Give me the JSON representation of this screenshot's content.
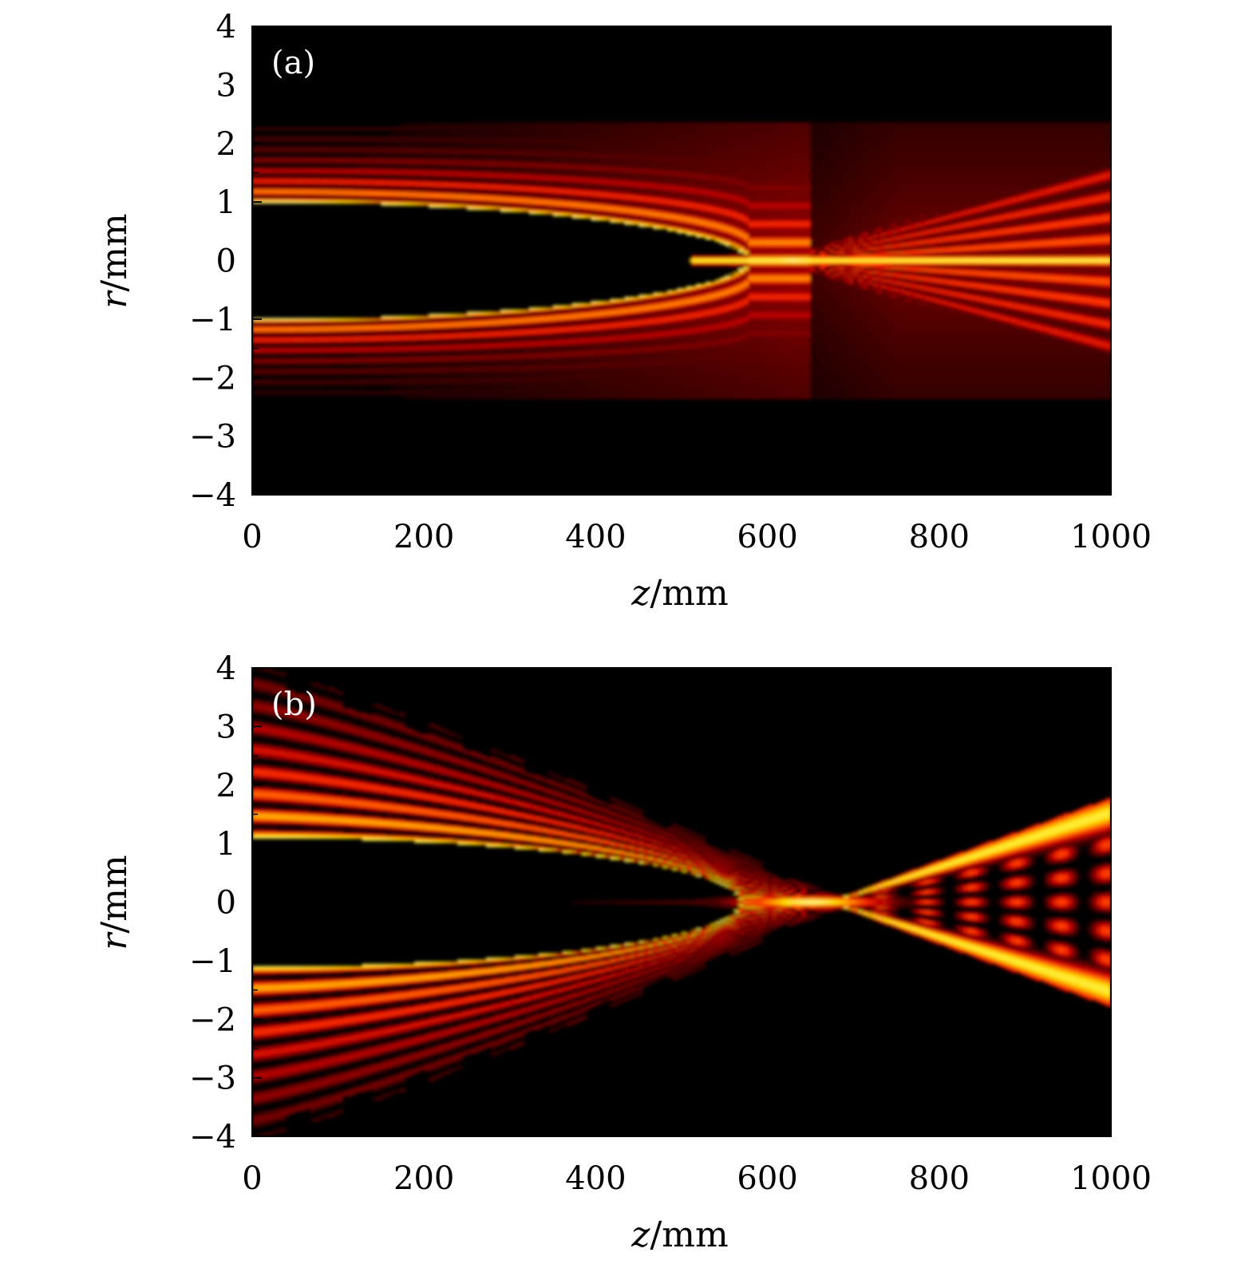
{
  "chart_data": [
    {
      "type": "heatmap",
      "panel_label": "(a)",
      "xlabel_var": "z",
      "xlabel_unit": "/mm",
      "ylabel_var": "r",
      "ylabel_unit": "/mm",
      "xlim": [
        0,
        1000
      ],
      "ylim": [
        -4,
        4
      ],
      "x_ticks": [
        0,
        200,
        400,
        600,
        800,
        1000
      ],
      "x_tick_labels": [
        "0",
        "200",
        "400",
        "600",
        "800",
        "1000"
      ],
      "y_ticks": [
        4,
        3,
        2,
        1,
        0,
        -1,
        -2,
        -3,
        -4
      ],
      "y_tick_labels": [
        "4",
        "3",
        "2",
        "1",
        "0",
        "−1",
        "−2",
        "−3",
        "−4"
      ],
      "colormap": [
        "#000000",
        "#5a0000",
        "#c00000",
        "#ff3000",
        "#ff8c00",
        "#ffe000",
        "#ffff9a"
      ],
      "features": {
        "beam_outer_edge_r": 2.35,
        "initial_inner_ring_r": 1.0,
        "focus_z": 630,
        "ring_closure_z": 540,
        "fringe_count": 12,
        "output_spread_r_at_z1000": 1.6
      }
    },
    {
      "type": "heatmap",
      "panel_label": "(b)",
      "xlabel_var": "z",
      "xlabel_unit": "/mm",
      "ylabel_var": "r",
      "ylabel_unit": "/mm",
      "xlim": [
        0,
        1000
      ],
      "ylim": [
        -4,
        4
      ],
      "x_ticks": [
        0,
        200,
        400,
        600,
        800,
        1000
      ],
      "x_tick_labels": [
        "0",
        "200",
        "400",
        "600",
        "800",
        "1000"
      ],
      "y_ticks": [
        4,
        3,
        2,
        1,
        0,
        -1,
        -2,
        -3,
        -4
      ],
      "y_tick_labels": [
        "4",
        "3",
        "2",
        "1",
        "0",
        "−1",
        "−2",
        "−3",
        "−4"
      ],
      "colormap": [
        "#000000",
        "#5a0000",
        "#c00000",
        "#ff3000",
        "#ff8c00",
        "#ffe000",
        "#ffff9a"
      ],
      "features": {
        "beam_outer_edge_r": 4.0,
        "initial_inner_ring_r": 1.1,
        "focus_z": 680,
        "ring_closure_z": 550,
        "fringe_count": 14,
        "output_spread_r_at_z1000": 1.7
      }
    }
  ]
}
